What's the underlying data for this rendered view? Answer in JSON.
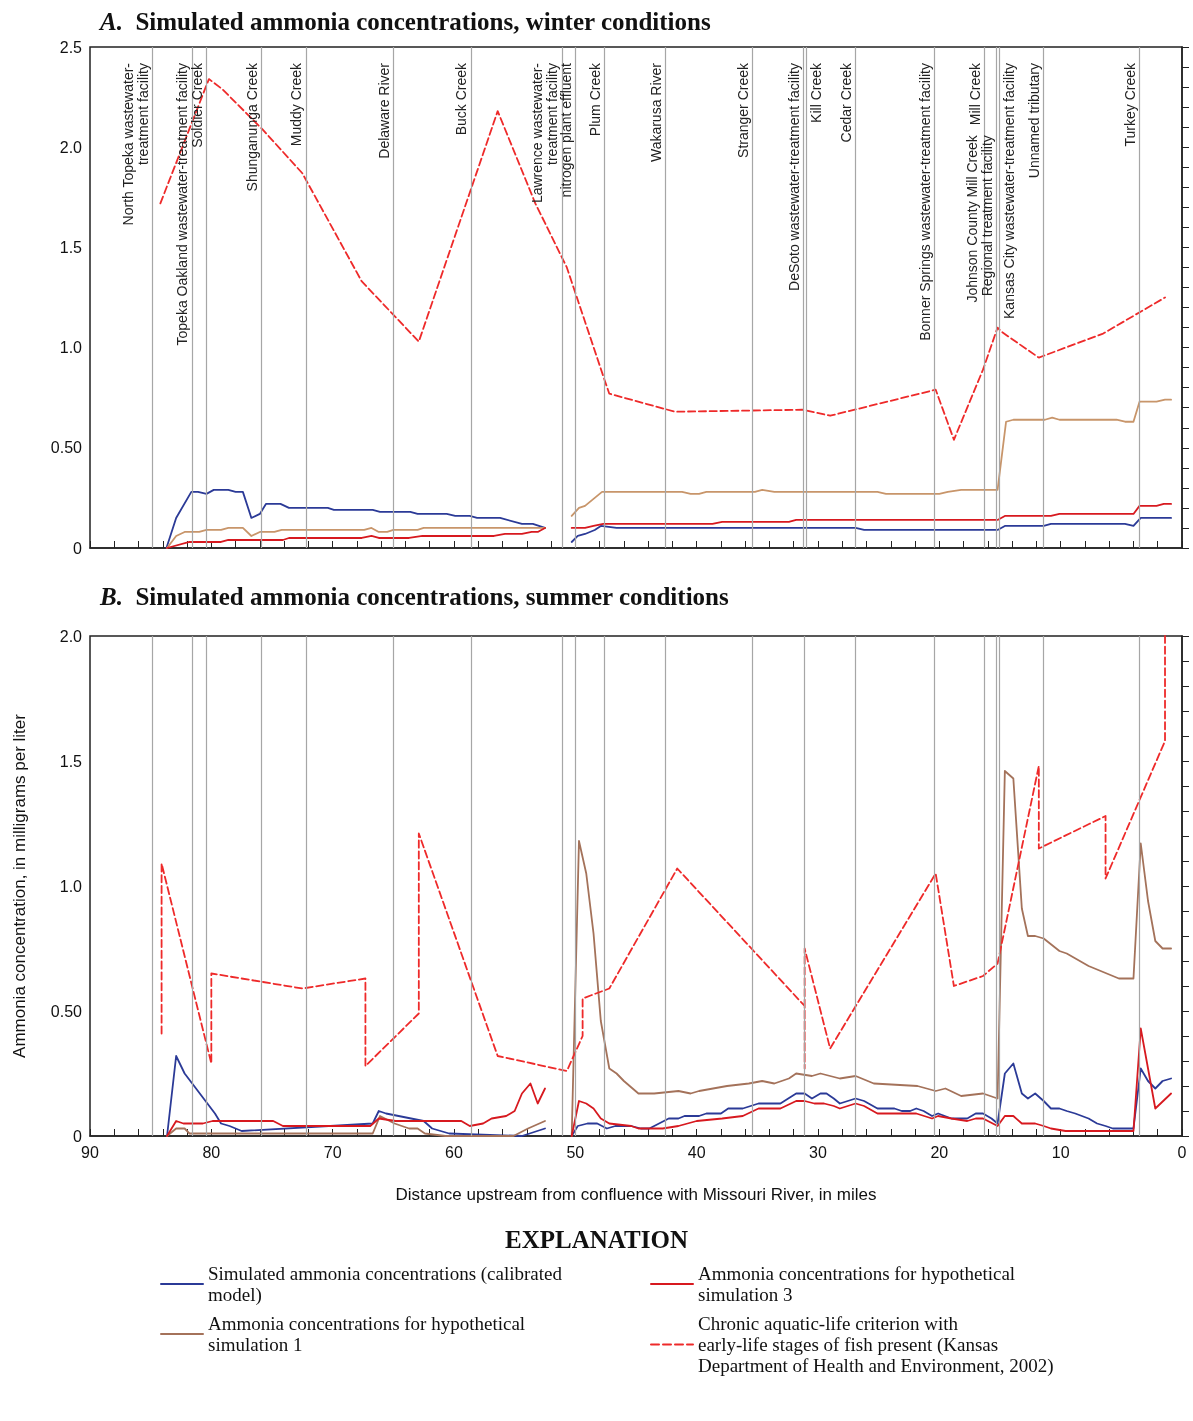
{
  "chart_data": [
    {
      "type": "line",
      "title": "A.  Simulated ammonia concentrations, winter conditions",
      "marker": "none",
      "tick_labels": "y",
      "xlim": [
        90,
        0
      ],
      "xticks": [
        0,
        {
          "value": 2,
          "label": null
        },
        {
          "value": 4,
          "label": null
        },
        {
          "value": 6,
          "label": null
        },
        {
          "value": 8,
          "label": null
        },
        10,
        {
          "value": 12,
          "label": null
        },
        {
          "value": 14,
          "label": null
        },
        {
          "value": 16,
          "label": null
        },
        {
          "value": 18,
          "label": null
        },
        20,
        {
          "value": 22,
          "label": null
        },
        {
          "value": 24,
          "label": null
        },
        {
          "value": 26,
          "label": null
        },
        {
          "value": 28,
          "label": null
        },
        30,
        {
          "value": 32,
          "label": null
        },
        {
          "value": 34,
          "label": null
        },
        {
          "value": 36,
          "label": null
        },
        {
          "value": 38,
          "label": null
        },
        40,
        {
          "value": 42,
          "label": null
        },
        {
          "value": 44,
          "label": null
        },
        {
          "value": 46,
          "label": null
        },
        {
          "value": 48,
          "label": null
        },
        50,
        {
          "value": 52,
          "label": null
        },
        {
          "value": 54,
          "label": null
        },
        {
          "value": 56,
          "label": null
        },
        {
          "value": 58,
          "label": null
        },
        60,
        {
          "value": 62,
          "label": null
        },
        {
          "value": 64,
          "label": null
        },
        {
          "value": 66,
          "label": null
        },
        {
          "value": 68,
          "label": null
        },
        70,
        {
          "value": 72,
          "label": null
        },
        {
          "value": 74,
          "label": null
        },
        {
          "value": 76,
          "label": null
        },
        {
          "value": 78,
          "label": null
        },
        80,
        {
          "value": 82,
          "label": null
        },
        {
          "value": 84,
          "label": null
        },
        {
          "value": 86,
          "label": null
        },
        {
          "value": 88,
          "label": null
        },
        90
      ],
      "ylim": [
        0,
        2.5
      ],
      "yticks": [
        0,
        {
          "value": 0.1,
          "label": null
        },
        {
          "value": 0.2,
          "label": null
        },
        {
          "value": 0.3,
          "label": null
        },
        {
          "value": 0.4,
          "label": null
        },
        {
          "value": 0.5,
          "label": "0.50"
        },
        {
          "value": 0.6,
          "label": null
        },
        {
          "value": 0.7,
          "label": null
        },
        {
          "value": 0.8,
          "label": null
        },
        {
          "value": 0.9,
          "label": null
        },
        {
          "value": 1,
          "label": "1.0"
        },
        {
          "value": 1.1,
          "label": null
        },
        {
          "value": 1.2,
          "label": null
        },
        {
          "value": 1.3,
          "label": null
        },
        {
          "value": 1.4,
          "label": null
        },
        1.5,
        {
          "value": 1.6,
          "label": null
        },
        {
          "value": 1.7,
          "label": null
        },
        {
          "value": 1.8,
          "label": null
        },
        {
          "value": 1.9,
          "label": null
        },
        {
          "value": 2,
          "label": "2.0"
        },
        {
          "value": 2.1,
          "label": null
        },
        {
          "value": 2.2,
          "label": null
        },
        {
          "value": 2.3,
          "label": null
        },
        {
          "value": 2.4,
          "label": null
        },
        2.5
      ],
      "series": [
        {
          "color": "#2b3a97",
          "x": [
            83.7,
            82.9,
            81.65,
            81.1,
            80.4,
            79.8,
            78.6,
            78.0,
            77.4,
            76.7,
            76.0,
            75.5,
            74.3,
            73.6,
            70.4,
            69.9,
            66.7,
            66.1,
            63.6,
            63.0,
            60.6,
            59.9,
            58.7,
            58.1,
            56.2,
            54.4,
            53.5,
            52.5,
            51.4,
            50.3,
            49.8,
            49.2,
            48.4,
            47.9,
            46.6,
            26.9,
            26.2,
            15.2,
            14.6,
            11.4,
            10.8,
            4.7,
            4.0,
            3.4,
            0.9
          ],
          "values": [
            0,
            0.15,
            0.28,
            0.28,
            0.27,
            0.29,
            0.29,
            0.28,
            0.28,
            0.15,
            0.17,
            0.22,
            0.22,
            0.2,
            0.2,
            0.19,
            0.19,
            0.18,
            0.18,
            0.17,
            0.17,
            0.16,
            0.16,
            0.15,
            0.15,
            0.12,
            0.12,
            0.1,
            null,
            0.03,
            0.06,
            0.07,
            0.09,
            0.11,
            0.1,
            0.1,
            0.09,
            0.09,
            0.11,
            0.11,
            0.12,
            0.12,
            0.11,
            0.15,
            0.15
          ]
        },
        {
          "color": "#c8956a",
          "x": [
            83.65,
            82.9,
            82.2,
            81.0,
            80.4,
            79.2,
            78.6,
            77.4,
            76.7,
            76.0,
            74.8,
            74.2,
            67.4,
            66.8,
            66.2,
            65.5,
            65.0,
            63.0,
            62.5,
            52.5,
            51.4,
            50.3,
            49.7,
            49.2,
            48.4,
            47.8,
            41.2,
            40.5,
            39.8,
            39.2,
            35.2,
            34.6,
            33.6,
            25.1,
            24.4,
            20.0,
            19.3,
            18.2,
            15.2,
            14.5,
            13.9,
            11.3,
            10.7,
            10.1,
            5.4,
            4.7,
            4.0,
            3.5,
            2.1,
            1.4,
            0.9
          ],
          "values": [
            0,
            0.06,
            0.08,
            0.08,
            0.09,
            0.09,
            0.1,
            0.1,
            0.06,
            0.08,
            0.08,
            0.09,
            0.09,
            0.1,
            0.08,
            0.08,
            0.09,
            0.09,
            0.1,
            0.1,
            null,
            0.16,
            0.2,
            0.21,
            0.25,
            0.28,
            0.28,
            0.27,
            0.27,
            0.28,
            0.28,
            0.29,
            0.28,
            0.28,
            0.27,
            0.27,
            0.28,
            0.29,
            0.29,
            0.63,
            0.64,
            0.64,
            0.65,
            0.64,
            0.64,
            0.63,
            0.63,
            0.73,
            0.73,
            0.74,
            0.74
          ]
        },
        {
          "color": "#d7191f",
          "x": [
            83.65,
            81.8,
            79.2,
            78.6,
            74.1,
            73.6,
            67.6,
            66.8,
            66.2,
            63.7,
            62.6,
            56.7,
            55.8,
            54.4,
            53.6,
            53.1,
            52.5,
            51.4,
            50.3,
            49.2,
            48.5,
            47.7,
            38.7,
            37.9,
            32.4,
            31.8,
            15.2,
            14.6,
            10.8,
            10.1,
            4.0,
            3.5,
            2.1,
            1.5,
            0.9
          ],
          "values": [
            0,
            0.03,
            0.03,
            0.04,
            0.04,
            0.05,
            0.05,
            0.06,
            0.05,
            0.05,
            0.06,
            0.06,
            0.07,
            0.07,
            0.08,
            0.08,
            0.1,
            null,
            0.1,
            0.1,
            0.11,
            0.12,
            0.12,
            0.13,
            0.13,
            0.14,
            0.14,
            0.16,
            0.16,
            0.17,
            0.17,
            0.21,
            0.21,
            0.22,
            0.22
          ]
        },
        {
          "color": "#ee2a2a",
          "line_style": "dashed",
          "x": [
            84.2,
            80.2,
            79.1,
            75.8,
            72.5,
            67.6,
            62.9,
            56.4,
            53.3,
            50.7,
            47.6,
            47.2,
            41.8,
            31.3,
            29.0,
            20.3,
            18.8,
            16.4,
            15.2,
            14.9,
            11.8,
            6.5,
            1.4
          ],
          "values": [
            1.72,
            2.34,
            2.29,
            2.09,
            1.87,
            1.33,
            1.03,
            2.18,
            1.72,
            1.4,
            0.84,
            0.77,
            0.68,
            0.69,
            0.66,
            0.79,
            0.54,
            0.89,
            1.1,
            1.08,
            0.95,
            1.07,
            1.25
          ]
        }
      ],
      "ref_lines": [
        {
          "axis": "x",
          "value": 84.85,
          "label": "North Topeka wastewater-\ntreatment facility",
          "color": "#a6a6a6"
        },
        {
          "axis": "x",
          "value": 81.6,
          "label": "Topeka Oakland wastewater-treatment facility",
          "color": "#a6a6a6"
        },
        {
          "axis": "x",
          "value": 80.4,
          "label": "Soldier Creek",
          "color": "#a6a6a6"
        },
        {
          "axis": "x",
          "value": 75.9,
          "label": "Shunganunga Creek",
          "color": "#a6a6a6"
        },
        {
          "axis": "x",
          "value": 72.2,
          "label": "Muddy Creek",
          "color": "#a6a6a6"
        },
        {
          "axis": "x",
          "value": 65.0,
          "label": "Delaware River",
          "color": "#a6a6a6"
        },
        {
          "axis": "x",
          "value": 58.6,
          "label": "Buck Creek",
          "color": "#a6a6a6"
        },
        {
          "axis": "x",
          "value": 51.1,
          "label": "Lawrence wastewater-\ntreatment facility",
          "color": "#a6a6a6"
        },
        {
          "axis": "x",
          "value": 50.0,
          "label": "nitrogen plant effluent",
          "color": "#a6a6a6"
        },
        {
          "axis": "x",
          "value": 47.6,
          "label": "Plum Creek",
          "color": "#a6a6a6"
        },
        {
          "axis": "x",
          "value": 42.6,
          "label": "Wakarusa River",
          "color": "#a6a6a6"
        },
        {
          "axis": "x",
          "value": 35.4,
          "label": "Stranger Creek",
          "color": "#a6a6a6"
        },
        {
          "axis": "x",
          "value": 31.2,
          "label": "DeSoto wastewater-treatment facility",
          "color": "#a6a6a6"
        },
        {
          "axis": "x",
          "value": 30.95,
          "label": "Kill Creek",
          "color": "#a6a6a6"
        },
        {
          "axis": "x",
          "value": 26.9,
          "label": "Cedar Creek",
          "color": "#a6a6a6"
        },
        {
          "axis": "x",
          "value": 20.4,
          "label": "Bonner Springs wastewater-treatment facility",
          "color": "#a6a6a6"
        },
        {
          "axis": "x",
          "value": 16.3,
          "label": "Mill Creek",
          "color": "#a6a6a6"
        },
        {
          "axis": "x",
          "value": 15.3,
          "label": "Johnson County Mill Creek\nRegional treatment facility",
          "color": "#a6a6a6"
        },
        {
          "axis": "x",
          "value": 15.05,
          "label": "Kansas City wastewater-treatment facility",
          "color": "#a6a6a6"
        },
        {
          "axis": "x",
          "value": 11.4,
          "label": "Unnamed tributary",
          "color": "#a6a6a6"
        },
        {
          "axis": "x",
          "value": 3.5,
          "label": "Turkey Creek",
          "color": "#a6a6a6"
        }
      ]
    },
    {
      "type": "line",
      "title": "B.  Simulated ammonia concentrations, summer conditions",
      "marker": "none",
      "xlabel": "Distance upstream from confluence with Missouri River, in miles",
      "ylabel": "Ammonia concentration, in milligrams per liter",
      "legend": "bottom",
      "legend_title": "EXPLANATION",
      "xlim": [
        90,
        0
      ],
      "xticks": [
        0,
        {
          "value": 2,
          "label": null
        },
        {
          "value": 4,
          "label": null
        },
        {
          "value": 6,
          "label": null
        },
        {
          "value": 8,
          "label": null
        },
        10,
        {
          "value": 12,
          "label": null
        },
        {
          "value": 14,
          "label": null
        },
        {
          "value": 16,
          "label": null
        },
        {
          "value": 18,
          "label": null
        },
        20,
        {
          "value": 22,
          "label": null
        },
        {
          "value": 24,
          "label": null
        },
        {
          "value": 26,
          "label": null
        },
        {
          "value": 28,
          "label": null
        },
        30,
        {
          "value": 32,
          "label": null
        },
        {
          "value": 34,
          "label": null
        },
        {
          "value": 36,
          "label": null
        },
        {
          "value": 38,
          "label": null
        },
        40,
        {
          "value": 42,
          "label": null
        },
        {
          "value": 44,
          "label": null
        },
        {
          "value": 46,
          "label": null
        },
        {
          "value": 48,
          "label": null
        },
        50,
        {
          "value": 52,
          "label": null
        },
        {
          "value": 54,
          "label": null
        },
        {
          "value": 56,
          "label": null
        },
        {
          "value": 58,
          "label": null
        },
        60,
        {
          "value": 62,
          "label": null
        },
        {
          "value": 64,
          "label": null
        },
        {
          "value": 66,
          "label": null
        },
        {
          "value": 68,
          "label": null
        },
        70,
        {
          "value": 72,
          "label": null
        },
        {
          "value": 74,
          "label": null
        },
        {
          "value": 76,
          "label": null
        },
        {
          "value": 78,
          "label": null
        },
        80,
        {
          "value": 82,
          "label": null
        },
        {
          "value": 84,
          "label": null
        },
        {
          "value": 86,
          "label": null
        },
        {
          "value": 88,
          "label": null
        },
        90
      ],
      "ylim": [
        0,
        2
      ],
      "yticks": [
        0,
        {
          "value": 0.1,
          "label": null
        },
        {
          "value": 0.2,
          "label": null
        },
        {
          "value": 0.3,
          "label": null
        },
        {
          "value": 0.4,
          "label": null
        },
        {
          "value": 0.5,
          "label": "0.50"
        },
        {
          "value": 0.6,
          "label": null
        },
        {
          "value": 0.7,
          "label": null
        },
        {
          "value": 0.8,
          "label": null
        },
        {
          "value": 0.9,
          "label": null
        },
        {
          "value": 1,
          "label": "1.0"
        },
        {
          "value": 1.1,
          "label": null
        },
        {
          "value": 1.2,
          "label": null
        },
        {
          "value": 1.3,
          "label": null
        },
        {
          "value": 1.4,
          "label": null
        },
        1.5,
        {
          "value": 1.6,
          "label": null
        },
        {
          "value": 1.7,
          "label": null
        },
        {
          "value": 1.8,
          "label": null
        },
        {
          "value": 1.9,
          "label": null
        },
        {
          "value": 2,
          "label": "2.0"
        }
      ],
      "series": [
        {
          "name": "Simulated ammonia concentrations (calibrated model)",
          "color": "#2b3a97",
          "x": [
            83.65,
            82.9,
            82.2,
            79.7,
            79.2,
            78.5,
            77.5,
            66.7,
            66.2,
            65.6,
            62.5,
            61.8,
            60.4,
            54.4,
            52.5,
            51.4,
            50.3,
            49.8,
            49.0,
            48.2,
            47.4,
            46.7,
            45.4,
            44.6,
            43.9,
            42.3,
            41.5,
            41.0,
            39.8,
            39.2,
            38.0,
            37.4,
            36.2,
            34.9,
            33.1,
            31.8,
            31.1,
            30.5,
            29.8,
            29.3,
            28.7,
            28.2,
            26.9,
            26.2,
            25.1,
            24.4,
            23.7,
            23.1,
            22.4,
            21.9,
            21.3,
            20.6,
            20.1,
            19.0,
            17.7,
            17.0,
            16.4,
            15.7,
            15.2,
            14.6,
            13.9,
            13.2,
            12.7,
            12.1,
            11.4,
            10.8,
            10.1,
            9.5,
            8.8,
            7.7,
            7.0,
            6.3,
            5.7,
            5.2,
            4.0,
            3.4,
            2.8,
            2.2,
            1.6,
            0.9
          ],
          "values": [
            0,
            0.32,
            0.25,
            0.09,
            0.05,
            0.04,
            0.02,
            0.05,
            0.1,
            0.09,
            0.06,
            0.03,
            0.01,
            0,
            0.03,
            null,
            0,
            0.04,
            0.05,
            0.05,
            0.03,
            0.04,
            0.04,
            0.03,
            0.03,
            0.07,
            0.07,
            0.08,
            0.08,
            0.09,
            0.09,
            0.11,
            0.11,
            0.13,
            0.13,
            0.17,
            0.17,
            0.15,
            0.17,
            0.17,
            0.15,
            0.13,
            0.15,
            0.14,
            0.11,
            0.11,
            0.11,
            0.1,
            0.1,
            0.11,
            0.1,
            0.08,
            0.09,
            0.07,
            0.07,
            0.09,
            0.09,
            0.07,
            0.05,
            0.25,
            0.29,
            0.17,
            0.15,
            0.17,
            0.14,
            0.11,
            0.11,
            0.1,
            0.09,
            0.07,
            0.05,
            0.04,
            0.03,
            0.03,
            0.03,
            0.27,
            0.22,
            0.19,
            0.22,
            0.23
          ]
        },
        {
          "name": "Ammonia concentrations for hypothetical simulation 1",
          "color": "#a4725a",
          "x": [
            83.65,
            82.9,
            82.2,
            81.8,
            66.7,
            66.1,
            64.9,
            63.7,
            63.0,
            62.4,
            60.7,
            55.1,
            53.9,
            52.5,
            51.4,
            50.3,
            49.7,
            49.1,
            48.5,
            47.9,
            47.2,
            46.6,
            46.0,
            44.8,
            43.5,
            41.5,
            40.5,
            39.8,
            37.5,
            35.7,
            34.6,
            33.6,
            32.4,
            31.8,
            30.5,
            29.8,
            28.2,
            26.9,
            25.4,
            21.8,
            20.3,
            19.5,
            18.2,
            16.4,
            15.2,
            14.6,
            13.9,
            13.2,
            12.7,
            12.1,
            11.4,
            10.1,
            9.5,
            7.7,
            5.2,
            4.0,
            3.4,
            2.8,
            2.2,
            1.6,
            0.9
          ],
          "values": [
            0,
            0.03,
            0.03,
            0.01,
            0.01,
            0.08,
            0.05,
            0.03,
            0.03,
            0.01,
            0,
            0,
            0.03,
            0.06,
            null,
            0,
            1.18,
            1.05,
            0.81,
            0.46,
            0.27,
            0.25,
            0.22,
            0.17,
            0.17,
            0.18,
            0.17,
            0.18,
            0.2,
            0.21,
            0.22,
            0.21,
            0.23,
            0.25,
            0.24,
            0.25,
            0.23,
            0.24,
            0.21,
            0.2,
            0.18,
            0.19,
            0.16,
            0.17,
            0.15,
            1.46,
            1.43,
            0.91,
            0.8,
            0.8,
            0.79,
            0.74,
            0.73,
            0.68,
            0.63,
            0.63,
            1.17,
            0.94,
            0.78,
            0.75,
            0.75
          ]
        },
        {
          "name": "Ammonia concentrations for hypothetical simulation 3",
          "color": "#d7191f",
          "x": [
            83.65,
            82.9,
            82.3,
            80.7,
            79.9,
            74.9,
            74.1,
            66.9,
            66.2,
            64.8,
            62.6,
            59.4,
            58.7,
            57.6,
            56.9,
            55.7,
            55.0,
            54.4,
            53.7,
            53.1,
            52.5,
            51.4,
            50.3,
            49.7,
            49.1,
            48.5,
            47.9,
            47.2,
            45.4,
            44.8,
            42.8,
            41.5,
            40.0,
            37.9,
            36.2,
            34.9,
            33.1,
            31.8,
            31.1,
            30.3,
            29.5,
            28.7,
            28.2,
            26.9,
            26.2,
            25.1,
            23.7,
            23.1,
            21.9,
            20.6,
            20.1,
            19.0,
            17.7,
            17.0,
            16.4,
            15.2,
            14.6,
            13.9,
            13.2,
            12.1,
            11.4,
            10.8,
            9.6,
            4.0,
            3.4,
            2.2,
            0.9
          ],
          "values": [
            0,
            0.06,
            0.05,
            0.05,
            0.06,
            0.06,
            0.04,
            0.04,
            0.07,
            0.06,
            0.06,
            0.06,
            0.04,
            0.05,
            0.07,
            0.08,
            0.1,
            0.17,
            0.21,
            0.13,
            0.19,
            null,
            0,
            0.14,
            0.13,
            0.11,
            0.07,
            0.05,
            0.04,
            0.03,
            0.03,
            0.04,
            0.06,
            0.07,
            0.08,
            0.11,
            0.11,
            0.14,
            0.14,
            0.13,
            0.13,
            0.12,
            0.11,
            0.13,
            0.12,
            0.09,
            0.09,
            0.09,
            0.09,
            0.07,
            0.08,
            0.07,
            0.06,
            0.07,
            0.07,
            0.04,
            0.08,
            0.08,
            0.05,
            0.05,
            0.04,
            0.03,
            0.02,
            0.02,
            0.43,
            0.11,
            0.17
          ]
        },
        {
          "name": "Chronic aquatic-life criterion with early-life stages of fish present (Kansas Department of Health and Environment, 2002)",
          "color": "#ee2a2a",
          "line_style": "dashed",
          "x": [
            84.1,
            84.1,
            80.0,
            80.0,
            72.5,
            67.3,
            67.3,
            62.9,
            62.9,
            56.4,
            50.7,
            49.4,
            49.4,
            47.2,
            41.6,
            31.1,
            31.1,
            31.1,
            29.0,
            20.3,
            18.8,
            16.4,
            15.2,
            11.8,
            11.8,
            6.3,
            6.3,
            1.4,
            1.4
          ],
          "values": [
            0.41,
            1.09,
            0.29,
            0.65,
            0.59,
            0.63,
            0.28,
            0.49,
            1.21,
            0.32,
            0.26,
            0.4,
            0.55,
            0.59,
            1.07,
            0.52,
            0.27,
            0.75,
            0.35,
            1.05,
            0.6,
            0.64,
            0.69,
            1.48,
            1.15,
            1.28,
            1.03,
            1.58,
            2.0
          ]
        }
      ],
      "ref_lines": [
        {
          "axis": "x",
          "value": 84.85,
          "color": "#a6a6a6"
        },
        {
          "axis": "x",
          "value": 81.6,
          "color": "#a6a6a6"
        },
        {
          "axis": "x",
          "value": 80.4,
          "color": "#a6a6a6"
        },
        {
          "axis": "x",
          "value": 75.9,
          "color": "#a6a6a6"
        },
        {
          "axis": "x",
          "value": 72.2,
          "color": "#a6a6a6"
        },
        {
          "axis": "x",
          "value": 65.0,
          "color": "#a6a6a6"
        },
        {
          "axis": "x",
          "value": 58.6,
          "color": "#a6a6a6"
        },
        {
          "axis": "x",
          "value": 51.1,
          "color": "#a6a6a6"
        },
        {
          "axis": "x",
          "value": 50.0,
          "color": "#a6a6a6"
        },
        {
          "axis": "x",
          "value": 47.6,
          "color": "#a6a6a6"
        },
        {
          "axis": "x",
          "value": 42.6,
          "color": "#a6a6a6"
        },
        {
          "axis": "x",
          "value": 35.4,
          "color": "#a6a6a6"
        },
        {
          "axis": "x",
          "value": 31.1,
          "color": "#a6a6a6"
        },
        {
          "axis": "x",
          "value": 26.9,
          "color": "#a6a6a6"
        },
        {
          "axis": "x",
          "value": 20.4,
          "color": "#a6a6a6"
        },
        {
          "axis": "x",
          "value": 16.3,
          "color": "#a6a6a6"
        },
        {
          "axis": "x",
          "value": 15.3,
          "color": "#a6a6a6"
        },
        {
          "axis": "x",
          "value": 15.05,
          "color": "#a6a6a6"
        },
        {
          "axis": "x",
          "value": 11.4,
          "color": "#a6a6a6"
        },
        {
          "axis": "x",
          "value": 3.5,
          "color": "#a6a6a6"
        }
      ]
    }
  ]
}
